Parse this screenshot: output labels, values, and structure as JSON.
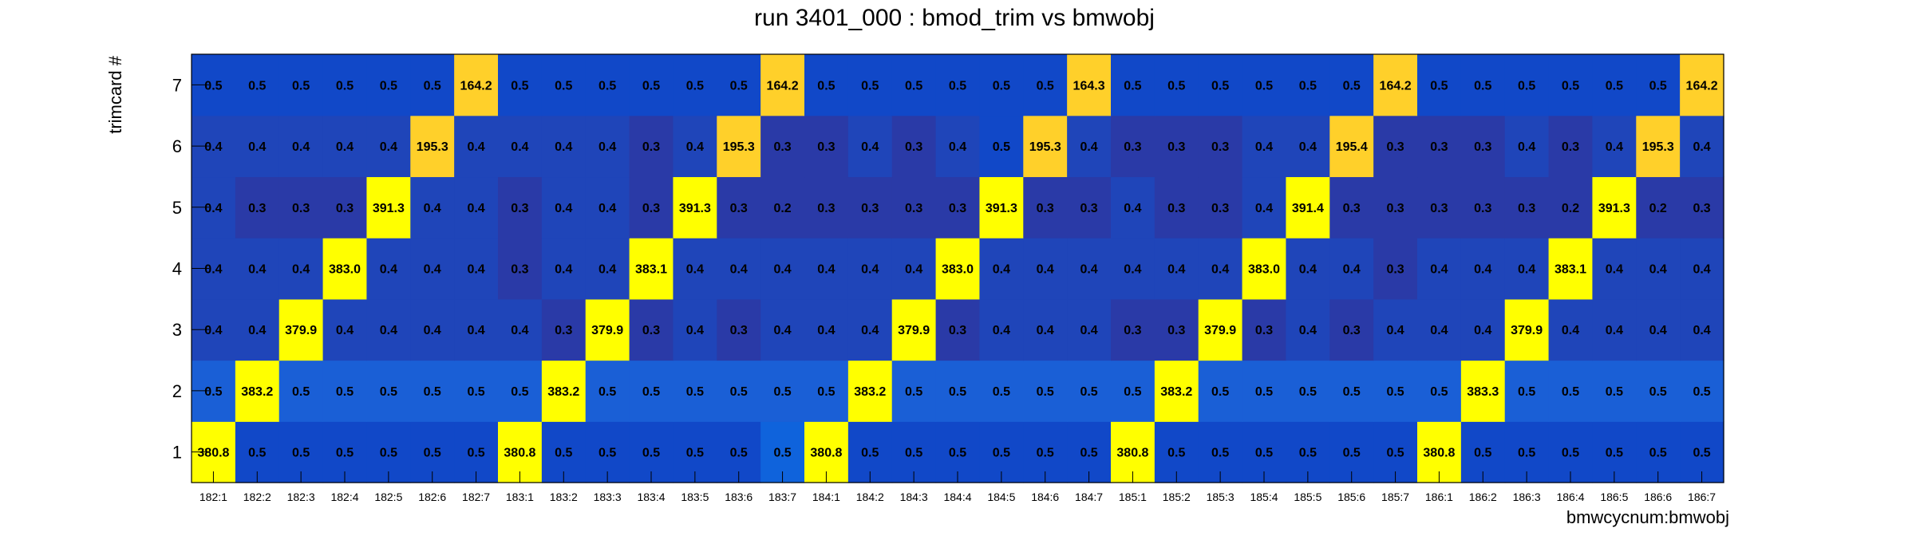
{
  "chart_data": {
    "type": "heatmap",
    "title": "run 3401_000 : bmod_trim vs bmwobj",
    "xlabel": "bmwcycnum:bmwobj",
    "ylabel": "trimcard #",
    "x_categories": [
      "182:1",
      "182:2",
      "182:3",
      "182:4",
      "182:5",
      "182:6",
      "182:7",
      "183:1",
      "183:2",
      "183:3",
      "183:4",
      "183:5",
      "183:6",
      "183:7",
      "184:1",
      "184:2",
      "184:3",
      "184:4",
      "184:5",
      "184:6",
      "184:7",
      "185:1",
      "185:2",
      "185:3",
      "185:4",
      "185:5",
      "185:6",
      "185:7",
      "186:1",
      "186:2",
      "186:3",
      "186:4",
      "186:5",
      "186:6",
      "186:7"
    ],
    "y_categories": [
      "1",
      "2",
      "3",
      "4",
      "5",
      "6",
      "7"
    ],
    "grid": false,
    "legend": "none",
    "values": [
      [
        380.8,
        0.5,
        0.5,
        0.5,
        0.5,
        0.5,
        0.5,
        380.8,
        0.5,
        0.5,
        0.5,
        0.5,
        0.5,
        0.5,
        380.8,
        0.5,
        0.5,
        0.5,
        0.5,
        0.5,
        0.5,
        380.8,
        0.5,
        0.5,
        0.5,
        0.5,
        0.5,
        0.5,
        380.8,
        0.5,
        0.5,
        0.5,
        0.5,
        0.5,
        0.5
      ],
      [
        0.5,
        383.2,
        0.5,
        0.5,
        0.5,
        0.5,
        0.5,
        0.5,
        383.2,
        0.5,
        0.5,
        0.5,
        0.5,
        0.5,
        0.5,
        383.2,
        0.5,
        0.5,
        0.5,
        0.5,
        0.5,
        0.5,
        383.2,
        0.5,
        0.5,
        0.5,
        0.5,
        0.5,
        0.5,
        383.3,
        0.5,
        0.5,
        0.5,
        0.5,
        0.5
      ],
      [
        0.4,
        0.4,
        379.9,
        0.4,
        0.4,
        0.4,
        0.4,
        0.4,
        0.3,
        379.9,
        0.3,
        0.4,
        0.3,
        0.4,
        0.4,
        0.4,
        379.9,
        0.3,
        0.4,
        0.4,
        0.4,
        0.3,
        0.3,
        379.9,
        0.3,
        0.4,
        0.3,
        0.4,
        0.4,
        0.4,
        379.9,
        0.4,
        0.4,
        0.4,
        0.4
      ],
      [
        0.4,
        0.4,
        0.4,
        383.0,
        0.4,
        0.4,
        0.4,
        0.3,
        0.4,
        0.4,
        383.1,
        0.4,
        0.4,
        0.4,
        0.4,
        0.4,
        0.4,
        383.0,
        0.4,
        0.4,
        0.4,
        0.4,
        0.4,
        0.4,
        383.0,
        0.4,
        0.4,
        0.3,
        0.4,
        0.4,
        0.4,
        383.1,
        0.4,
        0.4,
        0.4
      ],
      [
        0.4,
        0.3,
        0.3,
        0.3,
        391.3,
        0.4,
        0.4,
        0.3,
        0.4,
        0.4,
        0.3,
        391.3,
        0.3,
        0.2,
        0.3,
        0.3,
        0.3,
        0.3,
        391.3,
        0.3,
        0.3,
        0.4,
        0.3,
        0.3,
        0.4,
        391.4,
        0.3,
        0.3,
        0.3,
        0.3,
        0.3,
        0.2,
        391.3,
        0.2,
        0.3
      ],
      [
        0.4,
        0.4,
        0.4,
        0.4,
        0.4,
        195.3,
        0.4,
        0.4,
        0.4,
        0.4,
        0.3,
        0.4,
        195.3,
        0.3,
        0.3,
        0.4,
        0.3,
        0.4,
        0.5,
        195.3,
        0.4,
        0.3,
        0.3,
        0.3,
        0.4,
        0.4,
        195.4,
        0.3,
        0.3,
        0.3,
        0.4,
        0.3,
        0.4,
        195.3,
        0.4
      ],
      [
        0.5,
        0.5,
        0.5,
        0.5,
        0.5,
        0.5,
        164.2,
        0.5,
        0.5,
        0.5,
        0.5,
        0.5,
        0.5,
        164.2,
        0.5,
        0.5,
        0.5,
        0.5,
        0.5,
        0.5,
        164.3,
        0.5,
        0.5,
        0.5,
        0.5,
        0.5,
        0.5,
        164.2,
        0.5,
        0.5,
        0.5,
        0.5,
        0.5,
        0.5,
        164.2
      ]
    ],
    "colors": {
      "high": "#ffff00",
      "mid_high": "#ffd02a",
      "low_05": "#1148c8",
      "low_04": "#1f45b9",
      "low_03": "#2a3aa7",
      "low_02": "#2a3aa7",
      "row2": "#1a5fd6",
      "special_05": "#0f63dc"
    }
  }
}
